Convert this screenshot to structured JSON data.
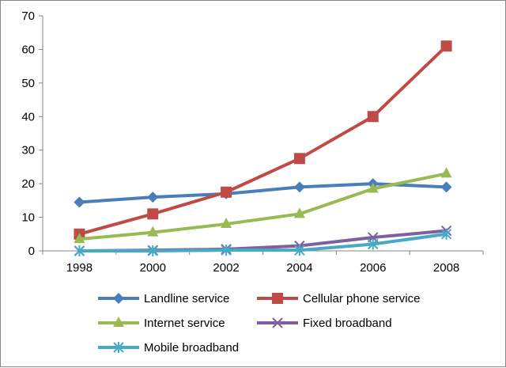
{
  "chart_data": {
    "type": "line",
    "categories": [
      "1998",
      "2000",
      "2002",
      "2004",
      "2006",
      "2008"
    ],
    "ylim": [
      0,
      70
    ],
    "yticks": [
      0,
      10,
      20,
      30,
      40,
      50,
      60,
      70
    ],
    "grid": false,
    "legend": "bottom",
    "series": [
      {
        "name": "Landline service",
        "color": "#4A7EBB",
        "marker": "diamond",
        "values": [
          14.5,
          16,
          17,
          19,
          20,
          19
        ]
      },
      {
        "name": "Cellular phone service",
        "color": "#BE4B48",
        "marker": "square",
        "values": [
          5,
          11,
          17.5,
          27.5,
          40,
          61
        ]
      },
      {
        "name": "Internet service",
        "color": "#98B954",
        "marker": "triangle",
        "values": [
          3.5,
          5.5,
          8,
          11,
          18.5,
          23
        ]
      },
      {
        "name": "Fixed broadband",
        "color": "#7D60A0",
        "marker": "x",
        "values": [
          0,
          0.2,
          0.5,
          1.5,
          4,
          6
        ]
      },
      {
        "name": "Mobile broadband",
        "color": "#46AAC5",
        "marker": "asterisk",
        "values": [
          0,
          0,
          0.2,
          0.2,
          2,
          5
        ]
      }
    ]
  }
}
